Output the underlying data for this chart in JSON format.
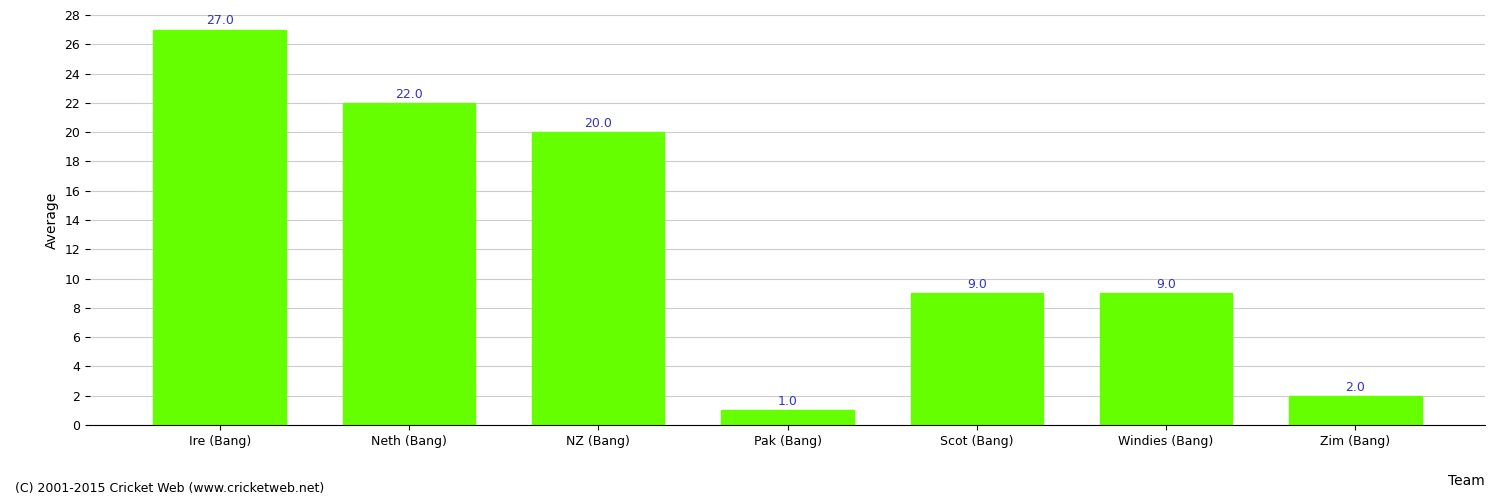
{
  "categories": [
    "Ire (Bang)",
    "Neth (Bang)",
    "NZ (Bang)",
    "Pak (Bang)",
    "Scot (Bang)",
    "Windies (Bang)",
    "Zim (Bang)"
  ],
  "values": [
    27.0,
    22.0,
    20.0,
    1.0,
    9.0,
    9.0,
    2.0
  ],
  "bar_color": "#66ff00",
  "bar_edge_color": "#66ff00",
  "xlabel": "Team",
  "ylabel": "Average",
  "ylim": [
    0,
    28
  ],
  "yticks": [
    0,
    2,
    4,
    6,
    8,
    10,
    12,
    14,
    16,
    18,
    20,
    22,
    24,
    26,
    28
  ],
  "annotation_color": "#3333cc",
  "annotation_fontsize": 9,
  "grid_color": "#cccccc",
  "background_color": "#ffffff",
  "footer_text": "(C) 2001-2015 Cricket Web (www.cricketweb.net)",
  "footer_fontsize": 9,
  "xlabel_fontsize": 10,
  "ylabel_fontsize": 10,
  "tick_fontsize": 9
}
